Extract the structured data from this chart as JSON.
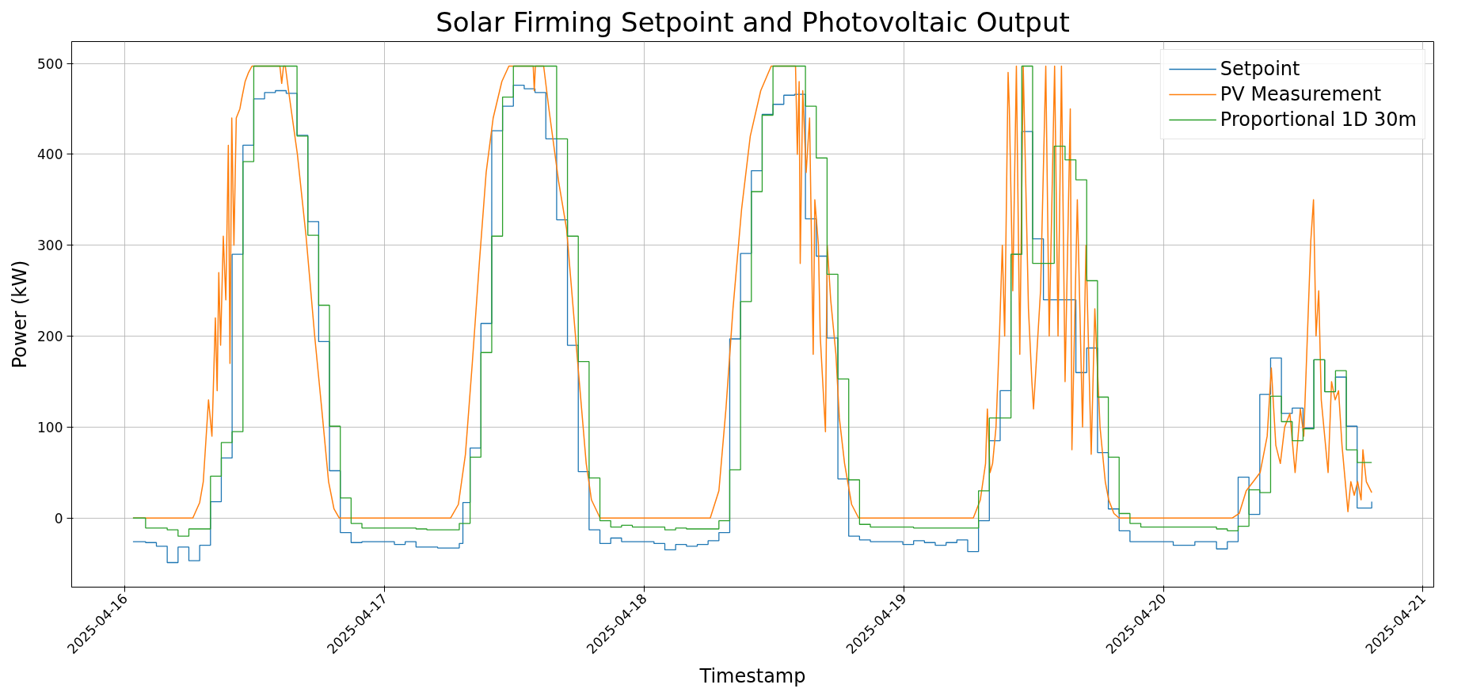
{
  "chart_data": {
    "type": "line",
    "title": "Solar Firming Setpoint and Photovoltaic Output",
    "xlabel": "Timestamp",
    "ylabel": "Power (kW)",
    "xlim": [
      "2025-04-15T19:05",
      "2025-04-21T01:00"
    ],
    "ylim": [
      -76,
      524
    ],
    "xticks": [
      {
        "value": "2025-04-16",
        "label": "2025-04-16"
      },
      {
        "value": "2025-04-17",
        "label": "2025-04-17"
      },
      {
        "value": "2025-04-18",
        "label": "2025-04-18"
      },
      {
        "value": "2025-04-19",
        "label": "2025-04-19"
      },
      {
        "value": "2025-04-20",
        "label": "2025-04-20"
      },
      {
        "value": "2025-04-21",
        "label": "2025-04-21"
      }
    ],
    "yticks": [
      0,
      100,
      200,
      300,
      400,
      500
    ],
    "grid": true,
    "legend": "top right",
    "series": [
      {
        "name": "Setpoint",
        "type": "step",
        "color": "#1f77b4",
        "x": [
          "2025-04-16T00:45",
          "2025-04-16T01:55",
          "2025-04-16T02:55",
          "2025-04-16T03:55",
          "2025-04-16T04:55",
          "2025-04-16T05:55",
          "2025-04-16T06:55",
          "2025-04-16T07:55",
          "2025-04-16T08:55",
          "2025-04-16T09:55",
          "2025-04-16T10:55",
          "2025-04-16T11:55",
          "2025-04-16T12:55",
          "2025-04-16T13:55",
          "2025-04-16T14:55",
          "2025-04-16T15:55",
          "2025-04-16T16:55",
          "2025-04-16T17:55",
          "2025-04-16T18:55",
          "2025-04-16T19:55",
          "2025-04-16T20:55",
          "2025-04-16T21:55",
          "2025-04-17T00:55",
          "2025-04-17T01:55",
          "2025-04-17T02:55",
          "2025-04-17T04:55",
          "2025-04-17T06:55",
          "2025-04-17T07:15",
          "2025-04-17T07:55",
          "2025-04-17T08:55",
          "2025-04-17T09:55",
          "2025-04-17T10:55",
          "2025-04-17T11:55",
          "2025-04-17T12:55",
          "2025-04-17T13:55",
          "2025-04-17T14:55",
          "2025-04-17T15:55",
          "2025-04-17T16:55",
          "2025-04-17T17:55",
          "2025-04-17T18:55",
          "2025-04-17T19:55",
          "2025-04-17T20:55",
          "2025-04-17T21:55",
          "2025-04-18T00:55",
          "2025-04-18T01:55",
          "2025-04-18T02:55",
          "2025-04-18T03:55",
          "2025-04-18T04:55",
          "2025-04-18T05:55",
          "2025-04-18T06:55",
          "2025-04-18T07:55",
          "2025-04-18T08:55",
          "2025-04-18T09:55",
          "2025-04-18T10:55",
          "2025-04-18T11:55",
          "2025-04-18T12:55",
          "2025-04-18T13:55",
          "2025-04-18T14:55",
          "2025-04-18T15:55",
          "2025-04-18T16:55",
          "2025-04-18T17:55",
          "2025-04-18T18:55",
          "2025-04-18T19:55",
          "2025-04-18T20:55",
          "2025-04-18T23:55",
          "2025-04-19T00:55",
          "2025-04-19T01:55",
          "2025-04-19T02:55",
          "2025-04-19T03:55",
          "2025-04-19T04:55",
          "2025-04-19T05:55",
          "2025-04-19T06:55",
          "2025-04-19T07:55",
          "2025-04-19T08:55",
          "2025-04-19T09:55",
          "2025-04-19T10:55",
          "2025-04-19T11:55",
          "2025-04-19T12:55",
          "2025-04-19T15:55",
          "2025-04-19T16:55",
          "2025-04-19T17:55",
          "2025-04-19T18:55",
          "2025-04-19T19:55",
          "2025-04-19T20:55",
          "2025-04-20T00:55",
          "2025-04-20T02:55",
          "2025-04-20T04:55",
          "2025-04-20T05:55",
          "2025-04-20T06:55",
          "2025-04-20T07:55",
          "2025-04-20T08:55",
          "2025-04-20T09:55",
          "2025-04-20T10:55",
          "2025-04-20T11:55",
          "2025-04-20T12:55",
          "2025-04-20T13:55",
          "2025-04-20T14:55",
          "2025-04-20T15:55",
          "2025-04-20T16:55",
          "2025-04-20T17:55",
          "2025-04-20T19:16"
        ],
        "values": [
          -26,
          -27,
          -31,
          -49,
          -32,
          -47,
          -30,
          18,
          66,
          290,
          410,
          461,
          468,
          470,
          467,
          421,
          326,
          194,
          52,
          -16,
          -27,
          -26,
          -29,
          -26,
          -32,
          -33,
          -28,
          17,
          77,
          214,
          426,
          453,
          476,
          472,
          468,
          417,
          328,
          190,
          51,
          -13,
          -28,
          -22,
          -26,
          -28,
          -35,
          -29,
          -31,
          -29,
          -25,
          -16,
          197,
          291,
          382,
          444,
          455,
          465,
          466,
          329,
          288,
          198,
          43,
          -20,
          -24,
          -26,
          -29,
          -25,
          -27,
          -30,
          -27,
          -24,
          -37,
          -3,
          85,
          140,
          290,
          425,
          307,
          240,
          160,
          187,
          72,
          10,
          -14,
          -26,
          -30,
          -26,
          -34,
          -26,
          45,
          4,
          136,
          176,
          115,
          121,
          99,
          174,
          139,
          155,
          101,
          11,
          18
        ]
      },
      {
        "name": "PV Measurement",
        "color": "#ff7f0e",
        "x": [
          "2025-04-16T00:45",
          "2025-04-16T06:17",
          "2025-04-16T06:55",
          "2025-04-16T07:15",
          "2025-04-16T07:44",
          "2025-04-16T08:03",
          "2025-04-16T08:22",
          "2025-04-16T08:32",
          "2025-04-16T08:41",
          "2025-04-16T08:51",
          "2025-04-16T09:06",
          "2025-04-16T09:20",
          "2025-04-16T09:34",
          "2025-04-16T09:43",
          "2025-04-16T09:53",
          "2025-04-16T10:05",
          "2025-04-16T10:18",
          "2025-04-16T10:38",
          "2025-04-16T10:47",
          "2025-04-16T11:07",
          "2025-04-16T11:26",
          "2025-04-16T11:45",
          "2025-04-16T14:20",
          "2025-04-16T14:30",
          "2025-04-16T14:40",
          "2025-04-16T14:50",
          "2025-04-16T15:08",
          "2025-04-16T15:57",
          "2025-04-16T16:45",
          "2025-04-16T17:33",
          "2025-04-16T18:12",
          "2025-04-16T18:50",
          "2025-04-16T19:20",
          "2025-04-16T19:49",
          "2025-04-17T06:07",
          "2025-04-17T06:50",
          "2025-04-17T07:29",
          "2025-04-17T08:07",
          "2025-04-17T08:46",
          "2025-04-17T09:24",
          "2025-04-17T10:03",
          "2025-04-17T10:51",
          "2025-04-17T11:30",
          "2025-04-17T13:45",
          "2025-04-17T13:51",
          "2025-04-17T13:57",
          "2025-04-17T14:43",
          "2025-04-17T15:12",
          "2025-04-17T16:06",
          "2025-04-17T16:50",
          "2025-04-17T17:50",
          "2025-04-17T18:39",
          "2025-04-17T19:08",
          "2025-04-17T19:56",
          "2025-04-18T06:07",
          "2025-04-18T06:55",
          "2025-04-18T07:34",
          "2025-04-18T08:13",
          "2025-04-18T09:01",
          "2025-04-18T09:49",
          "2025-04-18T10:47",
          "2025-04-18T11:45",
          "2025-04-18T14:00",
          "2025-04-18T14:10",
          "2025-04-18T14:20",
          "2025-04-18T14:26",
          "2025-04-18T14:40",
          "2025-04-18T14:59",
          "2025-04-18T15:18",
          "2025-04-18T15:38",
          "2025-04-18T15:47",
          "2025-04-18T16:07",
          "2025-04-18T16:17",
          "2025-04-18T16:46",
          "2025-04-18T16:56",
          "2025-04-18T17:15",
          "2025-04-18T17:44",
          "2025-04-18T18:03",
          "2025-04-18T18:32",
          "2025-04-18T19:11",
          "2025-04-18T19:50",
          "2025-04-19T06:26",
          "2025-04-19T07:05",
          "2025-04-19T07:34",
          "2025-04-19T07:44",
          "2025-04-19T07:59",
          "2025-04-19T08:13",
          "2025-04-19T08:32",
          "2025-04-19T08:51",
          "2025-04-19T09:07",
          "2025-04-19T09:20",
          "2025-04-19T09:39",
          "2025-04-19T09:46",
          "2025-04-19T10:05",
          "2025-04-19T10:25",
          "2025-04-19T10:44",
          "2025-04-19T11:03",
          "2025-04-19T11:32",
          "2025-04-19T11:51",
          "2025-04-19T12:00",
          "2025-04-19T12:39",
          "2025-04-19T13:08",
          "2025-04-19T13:27",
          "2025-04-19T13:57",
          "2025-04-19T14:16",
          "2025-04-19T14:35",
          "2025-04-19T14:55",
          "2025-04-19T15:24",
          "2025-04-19T15:33",
          "2025-04-19T16:03",
          "2025-04-19T16:32",
          "2025-04-19T16:51",
          "2025-04-19T17:20",
          "2025-04-19T17:40",
          "2025-04-19T18:09",
          "2025-04-19T18:38",
          "2025-04-19T18:57",
          "2025-04-19T19:26",
          "2025-04-19T19:55",
          "2025-04-20T06:23",
          "2025-04-20T07:01",
          "2025-04-20T07:40",
          "2025-04-20T08:19",
          "2025-04-20T08:57",
          "2025-04-20T09:36",
          "2025-04-20T09:59",
          "2025-04-20T10:24",
          "2025-04-20T10:49",
          "2025-04-20T11:13",
          "2025-04-20T11:42",
          "2025-04-20T12:11",
          "2025-04-20T12:40",
          "2025-04-20T12:59",
          "2025-04-20T13:19",
          "2025-04-20T13:38",
          "2025-04-20T13:53",
          "2025-04-20T14:07",
          "2025-04-20T14:22",
          "2025-04-20T14:36",
          "2025-04-20T15:14",
          "2025-04-20T15:33",
          "2025-04-20T15:53",
          "2025-04-20T16:12",
          "2025-04-20T16:31",
          "2025-04-20T17:04",
          "2025-04-20T17:20",
          "2025-04-20T17:39",
          "2025-04-20T17:58",
          "2025-04-20T18:17",
          "2025-04-20T18:27",
          "2025-04-20T18:46",
          "2025-04-20T19:16"
        ],
        "values": [
          0,
          0,
          17,
          40,
          130,
          90,
          220,
          140,
          270,
          190,
          310,
          240,
          410,
          170,
          440,
          300,
          440,
          450,
          460,
          480,
          490,
          497,
          497,
          478,
          497,
          497,
          470,
          400,
          310,
          200,
          120,
          40,
          10,
          0,
          0,
          15,
          70,
          170,
          280,
          380,
          440,
          480,
          497,
          497,
          470,
          497,
          497,
          450,
          370,
          318,
          175,
          60,
          20,
          0,
          0,
          30,
          120,
          230,
          340,
          420,
          470,
          497,
          497,
          400,
          480,
          280,
          470,
          380,
          440,
          180,
          350,
          300,
          200,
          95,
          300,
          240,
          180,
          110,
          60,
          15,
          0,
          0,
          20,
          60,
          120,
          50,
          60,
          100,
          200,
          300,
          200,
          490,
          450,
          250,
          497,
          180,
          497,
          230,
          150,
          120,
          250,
          497,
          200,
          497,
          200,
          497,
          150,
          450,
          75,
          350,
          100,
          300,
          70,
          230,
          100,
          40,
          20,
          5,
          0,
          0,
          5,
          30,
          40,
          50,
          90,
          165,
          80,
          60,
          100,
          115,
          50,
          120,
          90,
          200,
          305,
          350,
          200,
          250,
          130,
          50,
          150,
          130,
          140,
          80,
          7,
          40,
          25,
          40,
          20,
          75,
          40,
          28
        ]
      },
      {
        "name": "Proportional 1D 30m",
        "type": "step",
        "color": "#2ca02c",
        "x": [
          "2025-04-16T00:45",
          "2025-04-16T01:55",
          "2025-04-16T03:55",
          "2025-04-16T04:55",
          "2025-04-16T05:55",
          "2025-04-16T07:55",
          "2025-04-16T08:55",
          "2025-04-16T09:55",
          "2025-04-16T10:55",
          "2025-04-16T11:55",
          "2025-04-16T15:55",
          "2025-04-16T16:55",
          "2025-04-16T17:55",
          "2025-04-16T18:55",
          "2025-04-16T19:55",
          "2025-04-16T20:55",
          "2025-04-16T21:55",
          "2025-04-17T02:55",
          "2025-04-17T03:55",
          "2025-04-17T06:55",
          "2025-04-17T07:55",
          "2025-04-17T08:55",
          "2025-04-17T09:55",
          "2025-04-17T10:55",
          "2025-04-17T11:55",
          "2025-04-17T15:55",
          "2025-04-17T16:55",
          "2025-04-17T17:55",
          "2025-04-17T18:55",
          "2025-04-17T19:55",
          "2025-04-17T20:55",
          "2025-04-17T21:55",
          "2025-04-17T22:55",
          "2025-04-18T01:55",
          "2025-04-18T02:55",
          "2025-04-18T03:55",
          "2025-04-18T06:55",
          "2025-04-18T07:55",
          "2025-04-18T08:55",
          "2025-04-18T09:55",
          "2025-04-18T10:55",
          "2025-04-18T11:55",
          "2025-04-18T14:55",
          "2025-04-18T15:55",
          "2025-04-18T16:55",
          "2025-04-18T17:55",
          "2025-04-18T18:55",
          "2025-04-18T19:55",
          "2025-04-18T20:55",
          "2025-04-19T00:55",
          "2025-04-19T06:55",
          "2025-04-19T07:55",
          "2025-04-19T09:55",
          "2025-04-19T10:55",
          "2025-04-19T11:55",
          "2025-04-19T13:55",
          "2025-04-19T14:55",
          "2025-04-19T15:55",
          "2025-04-19T16:55",
          "2025-04-19T17:55",
          "2025-04-19T18:55",
          "2025-04-19T19:55",
          "2025-04-19T20:55",
          "2025-04-19T21:55",
          "2025-04-20T04:55",
          "2025-04-20T05:55",
          "2025-04-20T06:55",
          "2025-04-20T07:55",
          "2025-04-20T08:55",
          "2025-04-20T09:55",
          "2025-04-20T10:55",
          "2025-04-20T11:55",
          "2025-04-20T12:55",
          "2025-04-20T13:55",
          "2025-04-20T14:55",
          "2025-04-20T15:55",
          "2025-04-20T16:55",
          "2025-04-20T17:55",
          "2025-04-20T19:16"
        ],
        "values": [
          0,
          -11,
          -13,
          -20,
          -12,
          46,
          83,
          95,
          392,
          497,
          420,
          311,
          234,
          101,
          22,
          -6,
          -11,
          -12,
          -13,
          -6,
          67,
          182,
          310,
          463,
          497,
          417,
          310,
          172,
          44,
          -3,
          -10,
          -8,
          -10,
          -13,
          -11,
          -12,
          -3,
          53,
          238,
          359,
          443,
          497,
          453,
          396,
          268,
          153,
          42,
          -7,
          -10,
          -11,
          30,
          110,
          290,
          497,
          280,
          409,
          394,
          372,
          261,
          133,
          67,
          5,
          -6,
          -10,
          -12,
          -14,
          -9,
          31,
          28,
          134,
          106,
          85,
          98,
          174,
          139,
          162,
          75,
          61,
          61
        ]
      }
    ]
  }
}
